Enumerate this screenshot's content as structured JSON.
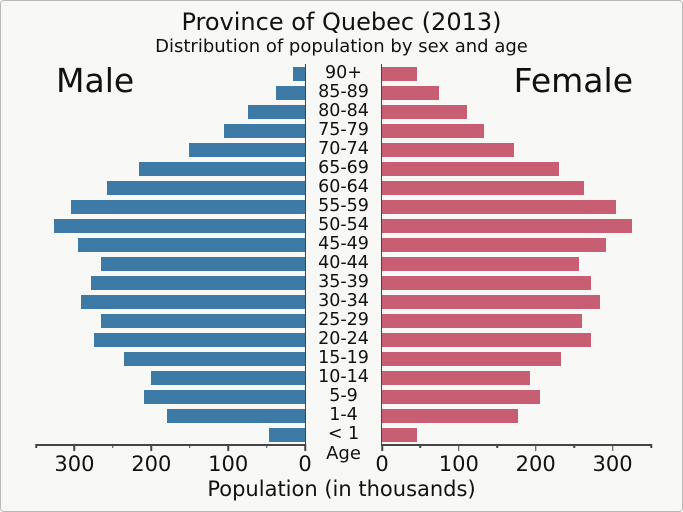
{
  "chart_data": {
    "type": "bar",
    "subtype": "population-pyramid",
    "title": "Province of Quebec (2013)",
    "subtitle": "Distribution of population by sex and age",
    "xlabel": "Population (in thousands)",
    "center_label": "Age",
    "categories": [
      "90+",
      "85-89",
      "80-84",
      "75-79",
      "70-74",
      "65-69",
      "60-64",
      "55-59",
      "50-54",
      "45-49",
      "40-44",
      "35-39",
      "30-34",
      "25-29",
      "20-24",
      "15-19",
      "10-14",
      "5-9",
      "1-4",
      "< 1"
    ],
    "series": [
      {
        "name": "Male",
        "side": "left",
        "color": "#3d7aa5",
        "values": [
          16,
          38,
          74,
          105,
          151,
          216,
          258,
          304,
          326,
          295,
          265,
          278,
          291,
          266,
          275,
          235,
          200,
          209,
          180,
          47
        ]
      },
      {
        "name": "Female",
        "side": "right",
        "color": "#c75e74",
        "values": [
          46,
          74,
          111,
          133,
          172,
          230,
          263,
          304,
          325,
          291,
          256,
          272,
          284,
          260,
          272,
          233,
          193,
          205,
          177,
          46
        ]
      }
    ],
    "axis_max": 350,
    "x_ticks_labeled": [
      0,
      100,
      200,
      300
    ],
    "x_tick_minor_step": 50,
    "grid": false,
    "legend_position": "none",
    "orientation": "mirrored-horizontal"
  },
  "colors": {
    "male_bar": "#3d7aa5",
    "female_bar": "#c75e74",
    "background": "#f8f8f6",
    "frame_border": "#b9b9b9",
    "axis": "#454545",
    "text": "#111111"
  }
}
